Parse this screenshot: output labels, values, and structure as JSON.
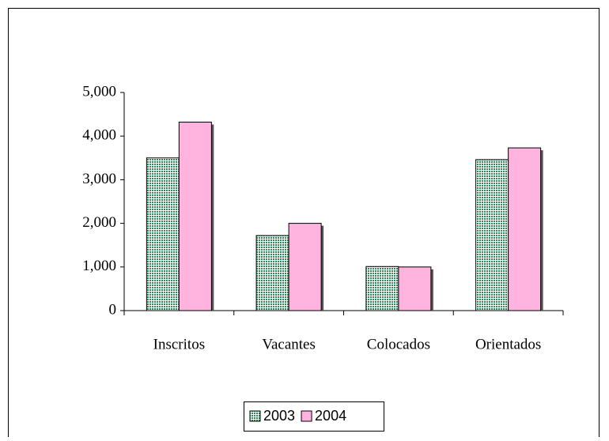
{
  "chart_data": {
    "type": "bar",
    "categories": [
      "Inscritos",
      "Vacantes",
      "Colocados",
      "Orientados"
    ],
    "series": [
      {
        "name": "2003",
        "color": "#2e8b57",
        "values": [
          3500,
          1720,
          1010,
          3460
        ]
      },
      {
        "name": "2004",
        "color": "#ffb3de",
        "values": [
          4320,
          2000,
          1000,
          3730
        ]
      }
    ],
    "ylim": [
      0,
      5000
    ],
    "yticks": [
      0,
      {
        "value": 1000,
        "label": "1,000"
      },
      {
        "value": 2000,
        "label": "2,000"
      },
      {
        "value": 3000,
        "label": "3,000"
      },
      {
        "value": 4000,
        "label": "4,000"
      },
      {
        "value": 5000,
        "label": "5,000"
      }
    ],
    "grid": false,
    "legend": "bottom"
  }
}
